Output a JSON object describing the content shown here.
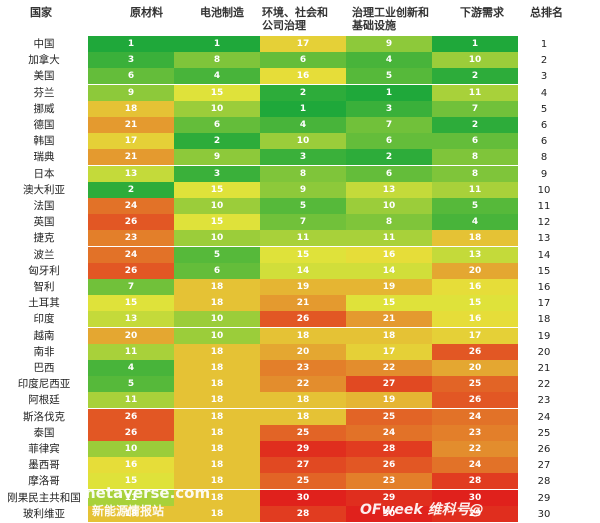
{
  "headers": {
    "country": "国家",
    "categories": [
      "原材料",
      "电池制造",
      "环境、社会和\n公司治理",
      "治理工业创新和\n基础设施",
      "下游需求"
    ],
    "total": "总排名"
  },
  "chart_data": {
    "type": "table",
    "columns": [
      "原材料",
      "电池制造",
      "环境、社会和公司治理",
      "治理工业创新和基础设施",
      "下游需求"
    ],
    "color_scale": {
      "low_rank_color": "#1fa83a",
      "mid_rank_color": "#e6e43a",
      "high_rank_color": "#e0211c",
      "min": 1,
      "max": 30
    },
    "rows": [
      {
        "country": "中国",
        "values": [
          1,
          1,
          17,
          9,
          1
        ],
        "total": 1
      },
      {
        "country": "加拿大",
        "values": [
          3,
          8,
          6,
          4,
          10
        ],
        "total": 2
      },
      {
        "country": "美国",
        "values": [
          6,
          4,
          16,
          5,
          2
        ],
        "total": 3
      },
      {
        "country": "芬兰",
        "values": [
          9,
          15,
          2,
          1,
          11
        ],
        "total": 4
      },
      {
        "country": "挪威",
        "values": [
          18,
          10,
          1,
          3,
          7
        ],
        "total": 5
      },
      {
        "country": "德国",
        "values": [
          21,
          6,
          4,
          7,
          2
        ],
        "total": 6
      },
      {
        "country": "韩国",
        "values": [
          17,
          2,
          10,
          6,
          6
        ],
        "total": 6
      },
      {
        "country": "瑞典",
        "values": [
          21,
          9,
          3,
          2,
          8
        ],
        "total": 8
      },
      {
        "country": "日本",
        "values": [
          13,
          3,
          8,
          6,
          8
        ],
        "total": 9
      },
      {
        "country": "澳大利亚",
        "values": [
          2,
          15,
          9,
          13,
          11
        ],
        "total": 10
      },
      {
        "country": "法国",
        "values": [
          24,
          10,
          5,
          10,
          5
        ],
        "total": 11
      },
      {
        "country": "英国",
        "values": [
          26,
          15,
          7,
          8,
          4
        ],
        "total": 12
      },
      {
        "country": "捷克",
        "values": [
          23,
          10,
          11,
          11,
          18
        ],
        "total": 13
      },
      {
        "country": "波兰",
        "values": [
          24,
          5,
          15,
          16,
          13
        ],
        "total": 14
      },
      {
        "country": "匈牙利",
        "values": [
          26,
          6,
          14,
          14,
          20
        ],
        "total": 15
      },
      {
        "country": "智利",
        "values": [
          7,
          18,
          19,
          19,
          16
        ],
        "total": 16
      },
      {
        "country": "土耳其",
        "values": [
          15,
          18,
          21,
          15,
          15
        ],
        "total": 17
      },
      {
        "country": "印度",
        "values": [
          13,
          10,
          26,
          21,
          16
        ],
        "total": 18
      },
      {
        "country": "越南",
        "values": [
          20,
          10,
          18,
          18,
          17
        ],
        "total": 19
      },
      {
        "country": "南非",
        "values": [
          11,
          18,
          20,
          17,
          26
        ],
        "total": 20
      },
      {
        "country": "巴西",
        "values": [
          4,
          18,
          23,
          22,
          20
        ],
        "total": 21
      },
      {
        "country": "印度尼西亚",
        "values": [
          5,
          18,
          22,
          27,
          25
        ],
        "total": 22
      },
      {
        "country": "阿根廷",
        "values": [
          11,
          18,
          18,
          19,
          26
        ],
        "total": 23
      },
      {
        "country": "斯洛伐克",
        "values": [
          26,
          18,
          18,
          25,
          24
        ],
        "total": 24
      },
      {
        "country": "泰国",
        "values": [
          26,
          18,
          25,
          24,
          23
        ],
        "total": 25
      },
      {
        "country": "菲律宾",
        "values": [
          10,
          18,
          29,
          28,
          22
        ],
        "total": 26
      },
      {
        "country": "墨西哥",
        "values": [
          16,
          18,
          27,
          26,
          24
        ],
        "total": 27
      },
      {
        "country": "摩洛哥",
        "values": [
          15,
          18,
          25,
          23,
          28
        ],
        "total": 28
      },
      {
        "country": "刚果民主共和国",
        "values": [
          11,
          18,
          30,
          29,
          30
        ],
        "total": 29
      },
      {
        "country": "玻利维亚",
        "values": [
          18,
          18,
          28,
          30,
          29
        ],
        "total": 30
      }
    ]
  },
  "watermarks": {
    "left": "netaverse.com",
    "left_sub": "新能源情报站",
    "right": "OFweek 维科号@"
  }
}
